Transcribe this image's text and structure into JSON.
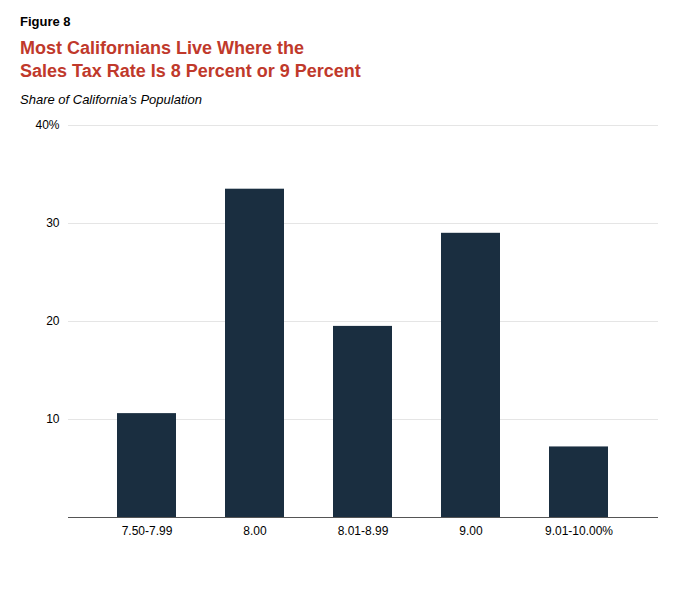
{
  "chart_data": {
    "type": "bar",
    "annotations": [
      "Figure 8"
    ],
    "title": "Most Californians Live Where the\nSales Tax Rate Is 8 Percent or 9 Percent",
    "subtitle": "Share of California’s Population",
    "categories": [
      "7.50-7.99",
      "8.00",
      "8.01-8.99",
      "9.00",
      "9.01-10.00%"
    ],
    "values": [
      10.6,
      33.5,
      19.5,
      29.0,
      7.2
    ],
    "color": "#1a2e40",
    "ylim": [
      0,
      40
    ],
    "yticks": [
      10,
      20,
      30,
      {
        "value": 40,
        "label": "40%"
      }
    ],
    "grid": true
  }
}
